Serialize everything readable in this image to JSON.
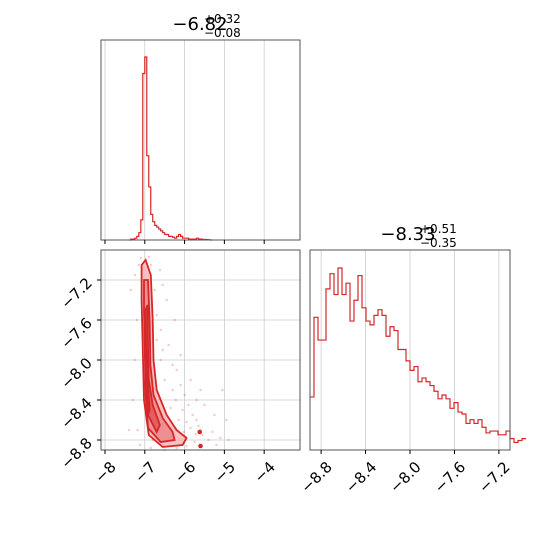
{
  "colors": {
    "hist": "#d62728",
    "contour_dark": "#d62728",
    "contour_fill_1": "#f4b6b7",
    "contour_fill_2": "#ec8788",
    "contour_fill_3": "#e35556",
    "scatter": "#d62728",
    "grid": "#cccccc",
    "axis": "#000000"
  },
  "chart_data": [
    {
      "type": "histogram",
      "panel": "top-left",
      "parameter_index": 0,
      "title_text": {
        "median": "−6.82",
        "plus": "+0.32",
        "minus": "−0.08"
      },
      "xlim": [
        -8.1,
        -3.1
      ],
      "x_ticks": [
        -8,
        -7,
        -6,
        -5,
        -4
      ],
      "show_y_ticks": false,
      "grid": "vertical",
      "bins": {
        "x_start": -7.4,
        "x_step": 0.05,
        "counts": [
          0,
          0.5,
          0.5,
          1,
          2,
          4,
          11,
          91,
          100,
          46,
          29,
          14,
          10,
          8,
          7,
          6,
          5,
          4,
          3,
          3,
          2,
          2,
          1.5,
          1,
          2,
          3,
          2,
          1,
          1,
          1,
          0.5,
          0.5,
          0.5,
          0.5,
          1,
          0.5,
          0.5,
          0.3,
          0.3,
          0.2,
          0.1,
          0
        ]
      }
    },
    {
      "type": "scatter-contour",
      "panel": "bottom-left",
      "xlim": [
        -8.1,
        -3.1
      ],
      "ylim": [
        -8.9,
        -6.9
      ],
      "x_ticks": [
        -8,
        -7,
        -6,
        -5,
        -4
      ],
      "x_tick_labels": [
        "−8",
        "−7",
        "−6",
        "−5",
        "−4"
      ],
      "y_ticks": [
        -7.2,
        -7.6,
        -8.0,
        -8.4,
        -8.8
      ],
      "y_tick_labels": [
        "−7.2",
        "−7.6",
        "−8.0",
        "−8.4",
        "−8.8"
      ],
      "grid": "both",
      "contour_levels": [
        {
          "level": 1,
          "points": [
            [
              -7.08,
              -7.05
            ],
            [
              -6.98,
              -7.0
            ],
            [
              -6.85,
              -7.15
            ],
            [
              -6.8,
              -7.6
            ],
            [
              -6.78,
              -8.0
            ],
            [
              -6.7,
              -8.3
            ],
            [
              -6.45,
              -8.55
            ],
            [
              -6.2,
              -8.7
            ],
            [
              -5.95,
              -8.78
            ],
            [
              -6.05,
              -8.85
            ],
            [
              -6.55,
              -8.87
            ],
            [
              -6.9,
              -8.75
            ],
            [
              -7.02,
              -8.4
            ],
            [
              -7.05,
              -7.9
            ],
            [
              -7.08,
              -7.4
            ]
          ]
        },
        {
          "level": 2,
          "points": [
            [
              -7.02,
              -7.2
            ],
            [
              -6.92,
              -7.2
            ],
            [
              -6.88,
              -7.6
            ],
            [
              -6.86,
              -8.05
            ],
            [
              -6.78,
              -8.35
            ],
            [
              -6.55,
              -8.58
            ],
            [
              -6.3,
              -8.72
            ],
            [
              -6.25,
              -8.8
            ],
            [
              -6.6,
              -8.82
            ],
            [
              -6.92,
              -8.68
            ],
            [
              -6.98,
              -8.35
            ],
            [
              -7.0,
              -7.9
            ],
            [
              -7.02,
              -7.5
            ]
          ]
        },
        {
          "level": 3,
          "points": [
            [
              -6.98,
              -7.5
            ],
            [
              -6.93,
              -7.45
            ],
            [
              -6.92,
              -7.85
            ],
            [
              -6.9,
              -8.2
            ],
            [
              -6.8,
              -8.45
            ],
            [
              -6.62,
              -8.65
            ],
            [
              -6.7,
              -8.72
            ],
            [
              -6.92,
              -8.55
            ],
            [
              -6.96,
              -8.2
            ],
            [
              -6.97,
              -7.85
            ]
          ]
        },
        {
          "level": 4,
          "points": [
            [
              -6.96,
              -7.9
            ],
            [
              -6.93,
              -7.9
            ],
            [
              -6.92,
              -8.25
            ],
            [
              -6.88,
              -8.5
            ],
            [
              -6.92,
              -8.55
            ],
            [
              -6.95,
              -8.3
            ]
          ]
        }
      ],
      "scatter_points": [
        [
          -7.15,
          -7.05
        ],
        [
          -7.25,
          -7.15
        ],
        [
          -7.1,
          -6.98
        ],
        [
          -6.9,
          -6.97
        ],
        [
          -6.85,
          -7.05
        ],
        [
          -6.75,
          -7.3
        ],
        [
          -6.7,
          -7.55
        ],
        [
          -6.6,
          -7.7
        ],
        [
          -6.55,
          -7.9
        ],
        [
          -6.4,
          -7.85
        ],
        [
          -6.3,
          -8.05
        ],
        [
          -6.2,
          -8.1
        ],
        [
          -6.1,
          -8.25
        ],
        [
          -6.0,
          -8.35
        ],
        [
          -5.9,
          -8.45
        ],
        [
          -5.8,
          -8.55
        ],
        [
          -5.7,
          -8.6
        ],
        [
          -5.6,
          -8.7
        ],
        [
          -5.55,
          -8.75
        ],
        [
          -5.4,
          -8.8
        ],
        [
          -5.3,
          -8.72
        ],
        [
          -5.2,
          -8.85
        ],
        [
          -5.1,
          -8.78
        ],
        [
          -5.25,
          -8.55
        ],
        [
          -5.05,
          -8.3
        ],
        [
          -5.6,
          -8.3
        ],
        [
          -5.85,
          -8.2
        ],
        [
          -6.25,
          -7.6
        ],
        [
          -6.45,
          -7.4
        ],
        [
          -6.62,
          -7.1
        ],
        [
          -7.2,
          -7.6
        ],
        [
          -7.25,
          -8.0
        ],
        [
          -7.3,
          -8.4
        ],
        [
          -7.18,
          -8.7
        ],
        [
          -7.12,
          -8.85
        ],
        [
          -6.85,
          -8.88
        ],
        [
          -6.5,
          -8.9
        ],
        [
          -6.2,
          -8.88
        ],
        [
          -5.95,
          -8.86
        ],
        [
          -5.75,
          -8.82
        ],
        [
          -5.65,
          -8.66
        ],
        [
          -6.35,
          -8.48
        ],
        [
          -6.15,
          -8.6
        ],
        [
          -6.05,
          -8.5
        ],
        [
          -5.95,
          -8.62
        ],
        [
          -6.5,
          -8.2
        ],
        [
          -6.6,
          -8.0
        ],
        [
          -6.7,
          -7.8
        ],
        [
          -6.65,
          -8.4
        ],
        [
          -7.05,
          -7.3
        ],
        [
          -7.0,
          -8.1
        ],
        [
          -6.95,
          -8.6
        ],
        [
          -6.8,
          -8.8
        ],
        [
          -6.4,
          -8.75
        ],
        [
          -6.3,
          -8.3
        ],
        [
          -5.5,
          -8.45
        ],
        [
          -4.95,
          -8.6
        ],
        [
          -4.9,
          -8.8
        ],
        [
          -5.7,
          -8.4
        ],
        [
          -6.1,
          -7.95
        ],
        [
          -6.55,
          -7.25
        ],
        [
          -7.35,
          -7.3
        ],
        [
          -7.4,
          -8.7
        ],
        [
          -6.75,
          -8.1
        ],
        [
          -6.88,
          -7.45
        ],
        [
          -6.58,
          -8.58
        ],
        [
          -6.22,
          -8.4
        ],
        [
          -6.02,
          -8.72
        ],
        [
          -5.85,
          -8.68
        ],
        [
          -5.72,
          -8.74
        ]
      ],
      "highlight_points": [
        [
          -5.62,
          -8.72
        ],
        [
          -5.6,
          -8.86
        ]
      ]
    },
    {
      "type": "histogram",
      "panel": "bottom-right",
      "parameter_index": 1,
      "title_text": {
        "median": "−8.33",
        "plus": "+0.51",
        "minus": "−0.35"
      },
      "xlim": [
        -8.9,
        -7.1
      ],
      "x_ticks": [
        -8.8,
        -8.4,
        -8.0,
        -7.6,
        -7.2
      ],
      "x_tick_labels": [
        "−8.8",
        "−8.4",
        "−8.0",
        "−7.6",
        "−7.2"
      ],
      "show_y_ticks": false,
      "grid": "vertical",
      "bins": {
        "x_start": -8.9,
        "x_step": 0.036,
        "counts": [
          28,
          70,
          58,
          58,
          85,
          93,
          82,
          96,
          82,
          88,
          68,
          79,
          92,
          75,
          68,
          66,
          71,
          74,
          71,
          60,
          65,
          63,
          53,
          53,
          47,
          42,
          44,
          36,
          38,
          36,
          34,
          31,
          27,
          29,
          27,
          22,
          25,
          20,
          19,
          14,
          16,
          14,
          16,
          12,
          9,
          10,
          10,
          8,
          8,
          10,
          6,
          4,
          5,
          6
        ]
      }
    }
  ]
}
